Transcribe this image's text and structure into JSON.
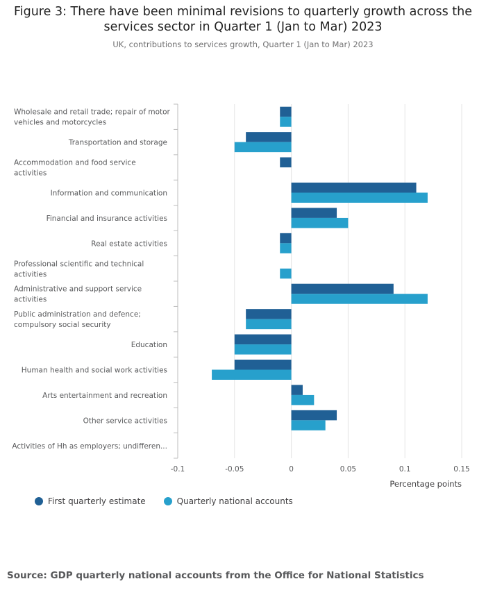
{
  "title_line1": "Figure 3: There have been minimal revisions to quarterly growth across the",
  "title_line2": "services sector in Quarter 1 (Jan to Mar) 2023",
  "subtitle": "UK, contributions to services growth, Quarter 1 (Jan to Mar) 2023",
  "source": "Source: GDP quarterly national accounts from the Office for National Statistics",
  "colors": {
    "series1": "#206095",
    "series2": "#27a0cc",
    "grid": "#e4e4e4",
    "axis": "#bcbcbc"
  },
  "chart_data": {
    "type": "bar",
    "orientation": "horizontal",
    "categories": [
      [
        "Wholesale and retail trade; repair of motor",
        "vehicles and motorcycles"
      ],
      [
        "Transportation and storage"
      ],
      [
        "Accommodation and food service",
        "activities"
      ],
      [
        "Information and communication"
      ],
      [
        "Financial and insurance activities"
      ],
      [
        "Real estate activities"
      ],
      [
        "Professional scientific and technical",
        "activities"
      ],
      [
        "Administrative and support service",
        "activities"
      ],
      [
        "Public administration and defence;",
        "compulsory social security"
      ],
      [
        "Education"
      ],
      [
        "Human health and social work activities"
      ],
      [
        "Arts entertainment and recreation"
      ],
      [
        "Other service activities"
      ],
      [
        "Activities of Hh as employers; undifferen..."
      ]
    ],
    "series": [
      {
        "name": "First quarterly estimate",
        "values": [
          -0.01,
          -0.04,
          -0.01,
          0.11,
          0.04,
          -0.01,
          0,
          0.09,
          -0.04,
          -0.05,
          -0.05,
          0.01,
          0.04,
          0
        ]
      },
      {
        "name": "Quarterly national accounts",
        "values": [
          -0.01,
          -0.05,
          0,
          0.12,
          0.05,
          -0.01,
          -0.01,
          0.12,
          -0.04,
          -0.05,
          -0.07,
          0.02,
          0.03,
          0
        ]
      }
    ],
    "xlim": [
      -0.1,
      0.15
    ],
    "xticks": [
      "-0.1",
      "-0.05",
      "0",
      "0.05",
      "0.1",
      "0.15"
    ],
    "xticks_values": [
      -0.1,
      -0.05,
      0,
      0.05,
      0.1,
      0.15
    ],
    "xlabel": "Percentage points",
    "grid": true,
    "legend_position": "bottom-left"
  }
}
